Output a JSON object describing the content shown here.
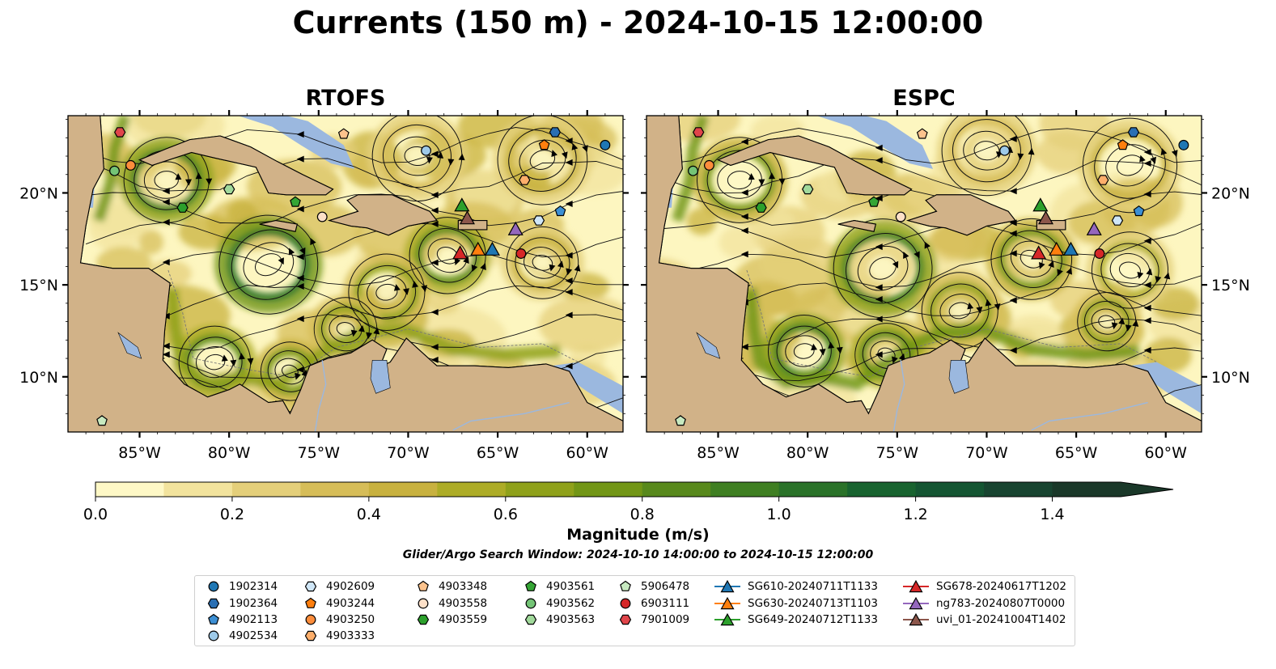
{
  "suptitle": "Currents (150 m) - 2024-10-15 12:00:00",
  "panels": [
    {
      "title": "RTOFS",
      "variant": 0
    },
    {
      "title": "ESPC",
      "variant": 1
    }
  ],
  "map_extent": {
    "lon": [
      -89,
      -58
    ],
    "lat": [
      7,
      24.2
    ]
  },
  "lon_ticks": [
    {
      "value": -85,
      "label": "85°W"
    },
    {
      "value": -80,
      "label": "80°W"
    },
    {
      "value": -75,
      "label": "75°W"
    },
    {
      "value": -70,
      "label": "70°W"
    },
    {
      "value": -65,
      "label": "65°W"
    },
    {
      "value": -60,
      "label": "60°W"
    }
  ],
  "lat_ticks": [
    {
      "value": 10,
      "label": "10°N"
    },
    {
      "value": 15,
      "label": "15°N"
    },
    {
      "value": 20,
      "label": "20°N"
    }
  ],
  "colors": {
    "ocean_deep": "#fdf6c0",
    "land": "#d1b288",
    "shelf_water": "#9bb8df",
    "streamline": "#111111"
  },
  "colorbar": {
    "label": "Magnitude (m/s)",
    "range": [
      0,
      1.5
    ],
    "extend": "max",
    "ticks": [
      {
        "value": 0.0,
        "label": "0.0"
      },
      {
        "value": 0.2,
        "label": "0.2"
      },
      {
        "value": 0.4,
        "label": "0.4"
      },
      {
        "value": 0.6,
        "label": "0.6"
      },
      {
        "value": 0.8,
        "label": "0.8"
      },
      {
        "value": 1.0,
        "label": "1.0"
      },
      {
        "value": 1.2,
        "label": "1.2"
      },
      {
        "value": 1.4,
        "label": "1.4"
      }
    ],
    "colors": [
      "#fef8c6",
      "#f2e39d",
      "#e4cf7a",
      "#d6bd58",
      "#c8b13f",
      "#adac26",
      "#8fa11a",
      "#729616",
      "#58891c",
      "#3f7f22",
      "#2a7229",
      "#18632f",
      "#145532",
      "#184430",
      "#1a3829"
    ]
  },
  "window_note": "Glider/Argo Search Window: 2024-10-10 14:00:00 to 2024-10-15 12:00:00",
  "legend": {
    "argo": [
      {
        "id": "1902314",
        "marker": "circle",
        "color": "#1f77b4"
      },
      {
        "id": "1902364",
        "marker": "hexagon",
        "color": "#2a6fb3"
      },
      {
        "id": "4902113",
        "marker": "pentagon",
        "color": "#3c8fd4"
      },
      {
        "id": "4902534",
        "marker": "circle",
        "color": "#9ecae9"
      },
      {
        "id": "4902609",
        "marker": "hexagon",
        "color": "#cfe6f7"
      },
      {
        "id": "4903244",
        "marker": "pentagon",
        "color": "#ff7f0e"
      },
      {
        "id": "4903250",
        "marker": "circle",
        "color": "#fd8d3c"
      },
      {
        "id": "4903333",
        "marker": "hexagon",
        "color": "#fdae6b"
      },
      {
        "id": "4903348",
        "marker": "pentagon",
        "color": "#fdc38d"
      },
      {
        "id": "4903558",
        "marker": "circle",
        "color": "#fde0c8"
      },
      {
        "id": "4903559",
        "marker": "hexagon",
        "color": "#2ca02c"
      },
      {
        "id": "4903561",
        "marker": "pentagon",
        "color": "#35a535"
      },
      {
        "id": "4903562",
        "marker": "circle",
        "color": "#74c476"
      },
      {
        "id": "4903563",
        "marker": "hexagon",
        "color": "#a1d99b"
      },
      {
        "id": "5906478",
        "marker": "pentagon",
        "color": "#c7e9c0"
      },
      {
        "id": "6903111",
        "marker": "circle",
        "color": "#d62728"
      },
      {
        "id": "7901009",
        "marker": "hexagon",
        "color": "#e0454a"
      }
    ],
    "gliders": [
      {
        "id": "SG610-20240711T1133",
        "color": "#1f77b4"
      },
      {
        "id": "SG630-20240713T1103",
        "color": "#ff7f0e"
      },
      {
        "id": "SG649-20240712T1133",
        "color": "#2ca02c"
      },
      {
        "id": "SG678-20240617T1202",
        "color": "#d62728"
      },
      {
        "id": "ng783-20240807T0000",
        "color": "#9467bd"
      },
      {
        "id": "uvi_01-20241004T1402",
        "color": "#8c564b"
      }
    ]
  },
  "argo_positions": [
    {
      "id": "1902314",
      "lon": -59.0,
      "lat": 22.6
    },
    {
      "id": "1902364",
      "lon": -61.8,
      "lat": 23.3
    },
    {
      "id": "4902113",
      "lon": -61.5,
      "lat": 19.0
    },
    {
      "id": "4902534",
      "lon": -69.0,
      "lat": 22.3
    },
    {
      "id": "4902609",
      "lon": -62.7,
      "lat": 18.5
    },
    {
      "id": "4903244",
      "lon": -62.4,
      "lat": 22.6
    },
    {
      "id": "4903250",
      "lon": -85.5,
      "lat": 21.5
    },
    {
      "id": "4903333",
      "lon": -63.5,
      "lat": 20.7
    },
    {
      "id": "4903348",
      "lon": -73.6,
      "lat": 23.2
    },
    {
      "id": "4903558",
      "lon": -74.8,
      "lat": 18.7
    },
    {
      "id": "4903559",
      "lon": -82.6,
      "lat": 19.2
    },
    {
      "id": "4903561",
      "lon": -76.3,
      "lat": 19.5
    },
    {
      "id": "4903562",
      "lon": -86.4,
      "lat": 21.2
    },
    {
      "id": "4903563",
      "lon": -80.0,
      "lat": 20.2
    },
    {
      "id": "5906478",
      "lon": -87.1,
      "lat": 7.6
    },
    {
      "id": "6903111",
      "lon": -63.7,
      "lat": 16.7
    },
    {
      "id": "7901009",
      "lon": -86.1,
      "lat": 23.3
    }
  ],
  "glider_positions": [
    {
      "id": "SG610-20240711T1133",
      "lon": -65.3,
      "lat": 16.9
    },
    {
      "id": "SG630-20240713T1103",
      "lon": -66.1,
      "lat": 16.9
    },
    {
      "id": "SG649-20240712T1133",
      "lon": -67.0,
      "lat": 19.3
    },
    {
      "id": "SG678-20240617T1202",
      "lon": -67.1,
      "lat": 16.7
    },
    {
      "id": "ng783-20240807T0000",
      "lon": -64.0,
      "lat": 18.0
    },
    {
      "id": "uvi_01-20241004T1402",
      "lon": -66.7,
      "lat": 18.6
    }
  ]
}
